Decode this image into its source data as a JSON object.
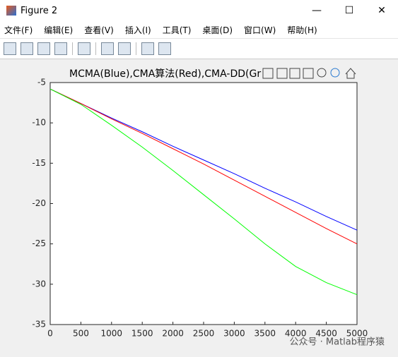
{
  "window": {
    "title": "Figure 2",
    "menu": [
      "文件(F)",
      "编辑(E)",
      "查看(V)",
      "插入(I)",
      "工具(T)",
      "桌面(D)",
      "窗口(W)",
      "帮助(H)"
    ]
  },
  "chart_data": {
    "type": "line",
    "title": "MCMA(Blue),CMA算法(Red),CMA-DD(Gr",
    "x": [
      0,
      500,
      1000,
      1500,
      2000,
      2500,
      3000,
      3500,
      4000,
      4500,
      5000
    ],
    "series": [
      {
        "name": "MCMA",
        "color": "#0000ff",
        "values": [
          -5.8,
          -7.6,
          -9.4,
          -11.1,
          -12.9,
          -14.6,
          -16.3,
          -18.1,
          -19.8,
          -21.6,
          -23.3
        ]
      },
      {
        "name": "CMA",
        "color": "#ff0000",
        "values": [
          -5.8,
          -7.6,
          -9.5,
          -11.3,
          -13.2,
          -15.1,
          -17.1,
          -19.1,
          -21.1,
          -23.1,
          -25.0
        ]
      },
      {
        "name": "CMA-DD",
        "color": "#00ff00",
        "values": [
          -5.8,
          -7.7,
          -10.3,
          -13.0,
          -15.9,
          -18.9,
          -21.9,
          -25.0,
          -27.8,
          -29.8,
          -31.3
        ]
      }
    ],
    "xlim": [
      0,
      5000
    ],
    "ylim": [
      -35,
      -5
    ],
    "xticks": [
      0,
      500,
      1000,
      1500,
      2000,
      2500,
      3000,
      3500,
      4000,
      4500,
      5000
    ],
    "yticks": [
      -35,
      -30,
      -25,
      -20,
      -15,
      -10,
      -5
    ]
  },
  "watermark": "公众号 · Matlab程序猿"
}
